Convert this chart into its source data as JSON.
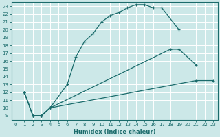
{
  "xlabel": "Humidex (Indice chaleur)",
  "bg_color": "#cce8e8",
  "grid_color": "#ffffff",
  "line_color": "#1a6b6b",
  "xlim": [
    -0.5,
    23.5
  ],
  "ylim": [
    8.5,
    23.5
  ],
  "xticks": [
    0,
    1,
    2,
    3,
    4,
    5,
    6,
    7,
    8,
    9,
    10,
    11,
    12,
    13,
    14,
    15,
    16,
    17,
    18,
    19,
    20,
    21,
    22,
    23
  ],
  "yticks": [
    9,
    10,
    11,
    12,
    13,
    14,
    15,
    16,
    17,
    18,
    19,
    20,
    21,
    22,
    23
  ],
  "curve1_x": [
    1,
    2,
    3,
    4,
    6,
    7,
    8,
    9,
    10,
    11,
    12,
    13,
    14,
    15,
    16,
    17,
    19
  ],
  "curve1_y": [
    12,
    9,
    9,
    10,
    13,
    16.5,
    18.5,
    19.5,
    21,
    21.8,
    22.2,
    22.8,
    23.2,
    23.2,
    22.8,
    22.8,
    20
  ],
  "curve2_x": [
    1,
    2,
    3,
    4,
    18,
    19,
    21
  ],
  "curve2_y": [
    12,
    9,
    9,
    10,
    17.5,
    17.5,
    15.5
  ],
  "curve3_x": [
    1,
    2,
    3,
    4,
    21,
    23
  ],
  "curve3_y": [
    12,
    9,
    9,
    10,
    13.5,
    13.5
  ]
}
